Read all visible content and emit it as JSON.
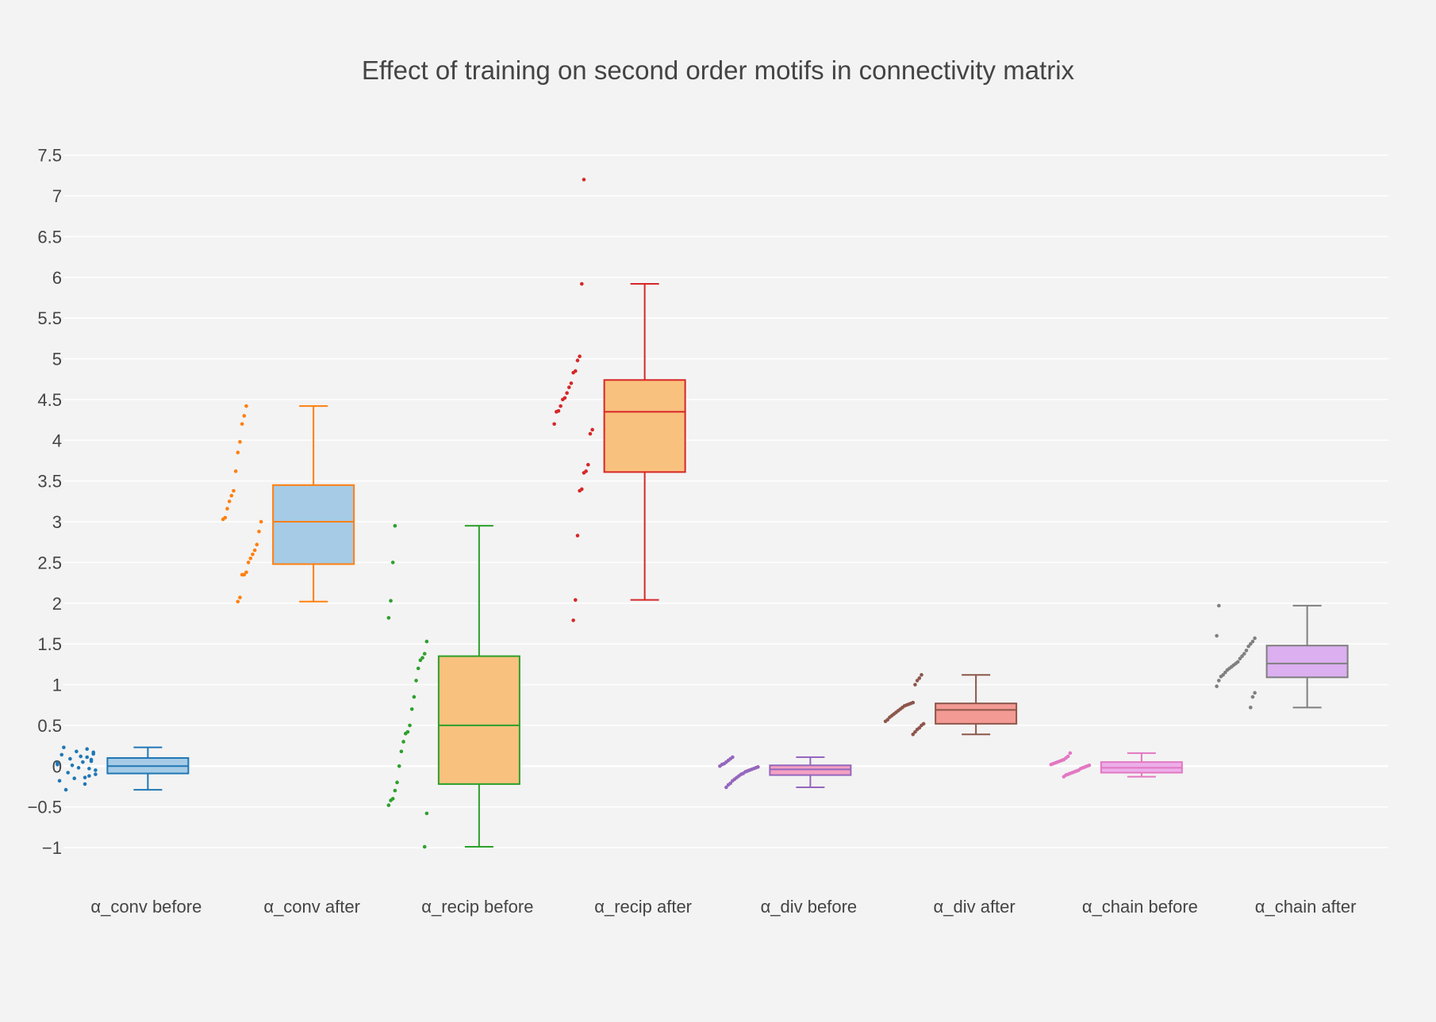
{
  "chart_data": {
    "type": "box",
    "title": "Effect of training on second order motifs in connectivity matrix",
    "xlabel": "",
    "ylabel": "",
    "ylim": [
      -1.35,
      7.75
    ],
    "yticks": [
      -1,
      -0.5,
      0,
      0.5,
      1,
      1.5,
      2,
      2.5,
      3,
      3.5,
      4,
      4.5,
      5,
      5.5,
      6,
      6.5,
      7,
      7.5
    ],
    "ytick_labels": [
      "−1",
      "−0.5",
      "0",
      "0.5",
      "1",
      "1.5",
      "2",
      "2.5",
      "3",
      "3.5",
      "4",
      "4.5",
      "5",
      "5.5",
      "6",
      "6.5",
      "7",
      "7.5"
    ],
    "grid": true,
    "legend": false,
    "categories": [
      "α_conv before",
      "α_conv after",
      "α_recip before",
      "α_recip after",
      "α_div before",
      "α_div after",
      "α_chain before",
      "α_chain after"
    ],
    "series": [
      {
        "category": "α_conv before",
        "color": "#1f77b4",
        "fill": "#a6cbe6",
        "min": -0.29,
        "q1": -0.09,
        "median": 0.0,
        "q3": 0.1,
        "max": 0.23,
        "points": [
          0.02,
          -0.05,
          0.15,
          0.08,
          -0.12,
          0.21,
          -0.22,
          0.05,
          0.12,
          -0.02,
          0.18,
          -0.15,
          0.01,
          0.09,
          -0.08,
          -0.29,
          0.23,
          0.14,
          -0.18,
          0.04,
          -0.1,
          0.17,
          0.06,
          -0.03,
          0.11,
          -0.14
        ]
      },
      {
        "category": "α_conv after",
        "color": "#ff7f0e",
        "fill": "#a6cbe6",
        "min": 2.02,
        "q1": 2.48,
        "median": 3.0,
        "q3": 3.45,
        "max": 4.42,
        "points": [
          4.42,
          4.3,
          4.2,
          3.98,
          3.85,
          3.62,
          3.38,
          3.32,
          3.25,
          3.16,
          3.05,
          3.03,
          3.0,
          2.88,
          2.72,
          2.65,
          2.6,
          2.55,
          2.5,
          2.38,
          2.35,
          2.35,
          2.07,
          2.02
        ]
      },
      {
        "category": "α_recip before",
        "color": "#2ca02c",
        "fill": "#f9c17e",
        "min": -0.99,
        "q1": -0.22,
        "median": 0.5,
        "q3": 1.35,
        "max": 2.95,
        "points": [
          2.95,
          2.5,
          2.03,
          1.82,
          1.53,
          1.38,
          1.33,
          1.3,
          1.2,
          1.05,
          0.85,
          0.7,
          0.5,
          0.42,
          0.4,
          0.3,
          0.18,
          0.0,
          -0.2,
          -0.3,
          -0.4,
          -0.42,
          -0.48,
          -0.58,
          -0.99
        ]
      },
      {
        "category": "α_recip after",
        "color": "#d62728",
        "fill": "#f9c17e",
        "min": 2.04,
        "q1": 3.61,
        "median": 4.35,
        "q3": 4.74,
        "max": 5.92,
        "points": [
          7.2,
          5.92,
          5.03,
          4.98,
          4.85,
          4.83,
          4.7,
          4.65,
          4.58,
          4.52,
          4.5,
          4.42,
          4.36,
          4.35,
          4.2,
          4.13,
          4.08,
          3.7,
          3.62,
          3.6,
          3.4,
          3.38,
          2.83,
          2.04,
          1.79
        ]
      },
      {
        "category": "α_div before",
        "color": "#9467bd",
        "fill": "#f3a0c2",
        "min": -0.26,
        "q1": -0.11,
        "median": -0.04,
        "q3": 0.01,
        "max": 0.11,
        "points": [
          0.11,
          0.09,
          0.07,
          0.05,
          0.03,
          0.02,
          0.0,
          -0.01,
          -0.02,
          -0.03,
          -0.04,
          -0.05,
          -0.06,
          -0.07,
          -0.09,
          -0.1,
          -0.12,
          -0.14,
          -0.16,
          -0.18,
          -0.21,
          -0.23,
          -0.26
        ]
      },
      {
        "category": "α_div after",
        "color": "#8c564b",
        "fill": "#f39a94",
        "min": 0.39,
        "q1": 0.52,
        "median": 0.69,
        "q3": 0.77,
        "max": 1.12,
        "points": [
          1.12,
          1.08,
          1.05,
          1.0,
          0.78,
          0.77,
          0.76,
          0.75,
          0.74,
          0.72,
          0.7,
          0.68,
          0.66,
          0.64,
          0.62,
          0.6,
          0.57,
          0.55,
          0.52,
          0.5,
          0.47,
          0.45,
          0.42,
          0.39
        ]
      },
      {
        "category": "α_chain before",
        "color": "#e377c2",
        "fill": "#ecafea",
        "min": -0.13,
        "q1": -0.08,
        "median": -0.02,
        "q3": 0.05,
        "max": 0.16,
        "points": [
          0.16,
          0.12,
          0.1,
          0.08,
          0.07,
          0.06,
          0.05,
          0.04,
          0.03,
          0.02,
          0.01,
          0.0,
          -0.01,
          -0.02,
          -0.03,
          -0.05,
          -0.06,
          -0.07,
          -0.08,
          -0.09,
          -0.1,
          -0.11,
          -0.13
        ]
      },
      {
        "category": "α_chain after",
        "color": "#7f7f7f",
        "fill": "#dcaff0",
        "min": 0.72,
        "q1": 1.09,
        "median": 1.26,
        "q3": 1.48,
        "max": 1.97,
        "points": [
          1.97,
          1.6,
          1.57,
          1.53,
          1.5,
          1.47,
          1.42,
          1.38,
          1.35,
          1.32,
          1.28,
          1.26,
          1.24,
          1.22,
          1.2,
          1.18,
          1.15,
          1.12,
          1.1,
          1.05,
          0.98,
          0.9,
          0.85,
          0.72
        ]
      }
    ]
  }
}
